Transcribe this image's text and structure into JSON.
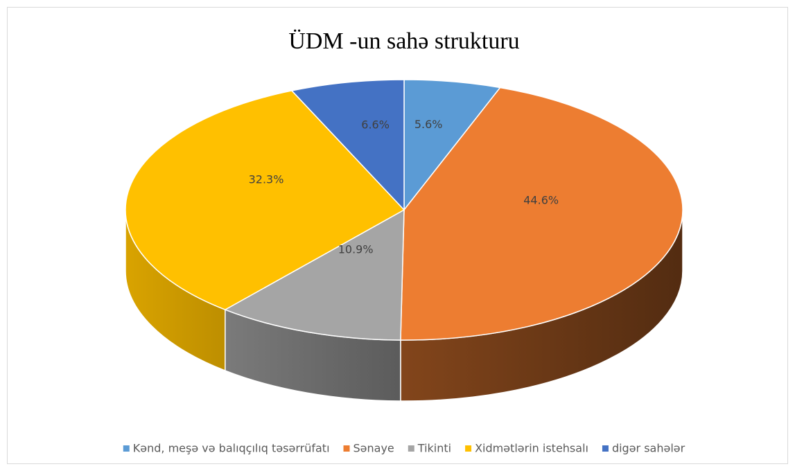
{
  "chart_data": {
    "type": "pie",
    "title": "ÜDM -un sahə strukturu",
    "categories": [
      "Kənd, meşə və balıqçılıq təsərrüfatı",
      "Sənaye",
      "Tikinti",
      "Xidmətlərin istehsalı",
      "digər sahələr"
    ],
    "values": [
      5.6,
      44.6,
      10.9,
      32.3,
      6.6
    ],
    "value_labels": [
      "5.6%",
      "44.6%",
      "10.9%",
      "32.3%",
      "6.6%"
    ],
    "colors": [
      "#5b9bd5",
      "#ed7d31",
      "#a5a5a5",
      "#ffc000",
      "#4472c4"
    ],
    "legend": "bottom"
  }
}
